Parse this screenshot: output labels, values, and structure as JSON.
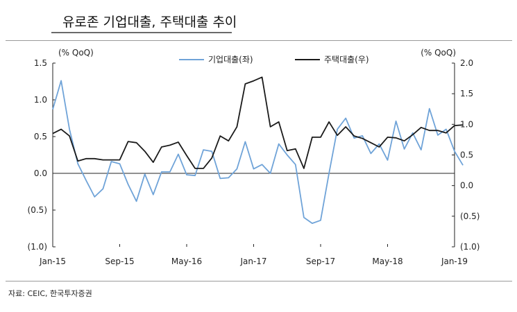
{
  "title": "유로존 기업대출, 주택대출 추이",
  "source": "자료: CEIC, 한국투자증권",
  "chart_data": {
    "type": "line",
    "left_unit": "(% QoQ)",
    "right_unit": "(% QoQ)",
    "left_axis": {
      "ylim": [
        -1.0,
        1.5
      ],
      "ticks": [
        1.5,
        1.0,
        0.5,
        0.0,
        -0.5,
        -1.0
      ],
      "tick_labels": [
        "1.5",
        "1.0",
        "0.5",
        "0.0",
        "(0.5)",
        "(1.0)"
      ]
    },
    "right_axis": {
      "ylim": [
        -1.0,
        2.0
      ],
      "ticks": [
        2.0,
        1.5,
        1.0,
        0.5,
        0.0,
        -0.5,
        -1.0
      ],
      "tick_labels": [
        "2.0",
        "1.5",
        "1.0",
        "0.5",
        "0.0",
        "(0.5)",
        "(1.0)"
      ]
    },
    "x_tick_labels": [
      "Jan-15",
      "Sep-15",
      "May-16",
      "Jan-17",
      "Sep-17",
      "May-18",
      "Jan-19"
    ],
    "x_tick_months": [
      "2015-01",
      "2015-09",
      "2016-05",
      "2017-01",
      "2017-09",
      "2018-05",
      "2019-01"
    ],
    "grid": false,
    "legend_position": "top-center",
    "series": [
      {
        "name": "기업대출(좌)",
        "axis": "left",
        "color": "#6fa3d8",
        "points": [
          [
            "2015-01",
            0.87
          ],
          [
            "2015-02",
            1.26
          ],
          [
            "2015-03",
            0.6
          ],
          [
            "2015-04",
            0.13
          ],
          [
            "2015-05",
            -0.1
          ],
          [
            "2015-06",
            -0.32
          ],
          [
            "2015-07",
            -0.21
          ],
          [
            "2015-08",
            0.16
          ],
          [
            "2015-09",
            0.13
          ],
          [
            "2015-10",
            -0.15
          ],
          [
            "2015-11",
            -0.38
          ],
          [
            "2015-12",
            -0.01
          ],
          [
            "2016-01",
            -0.29
          ],
          [
            "2016-02",
            0.02
          ],
          [
            "2016-03",
            0.02
          ],
          [
            "2016-04",
            0.26
          ],
          [
            "2016-05",
            -0.02
          ],
          [
            "2016-06",
            -0.03
          ],
          [
            "2016-07",
            0.32
          ],
          [
            "2016-08",
            0.3
          ],
          [
            "2016-09",
            -0.07
          ],
          [
            "2016-10",
            -0.06
          ],
          [
            "2016-11",
            0.06
          ],
          [
            "2016-12",
            0.43
          ],
          [
            "2017-01",
            0.06
          ],
          [
            "2017-02",
            0.12
          ],
          [
            "2017-03",
            0.0
          ],
          [
            "2017-04",
            0.4
          ],
          [
            "2017-05",
            0.25
          ],
          [
            "2017-06",
            0.12
          ],
          [
            "2017-07",
            -0.6
          ],
          [
            "2017-08",
            -0.68
          ],
          [
            "2017-09",
            -0.64
          ],
          [
            "2017-10",
            0.0
          ],
          [
            "2017-11",
            0.6
          ],
          [
            "2017-12",
            0.75
          ],
          [
            "2018-01",
            0.48
          ],
          [
            "2018-02",
            0.51
          ],
          [
            "2018-03",
            0.27
          ],
          [
            "2018-04",
            0.4
          ],
          [
            "2018-05",
            0.18
          ],
          [
            "2018-06",
            0.71
          ],
          [
            "2018-07",
            0.33
          ],
          [
            "2018-08",
            0.55
          ],
          [
            "2018-09",
            0.32
          ],
          [
            "2018-10",
            0.88
          ],
          [
            "2018-11",
            0.52
          ],
          [
            "2018-12",
            0.6
          ],
          [
            "2019-01",
            0.3
          ],
          [
            "2019-02",
            0.11
          ]
        ]
      },
      {
        "name": "주택대출(우)",
        "axis": "right",
        "color": "#1a1a1a",
        "points": [
          [
            "2015-01",
            0.85
          ],
          [
            "2015-02",
            0.92
          ],
          [
            "2015-03",
            0.81
          ],
          [
            "2015-04",
            0.4
          ],
          [
            "2015-05",
            0.44
          ],
          [
            "2015-06",
            0.44
          ],
          [
            "2015-07",
            0.42
          ],
          [
            "2015-08",
            0.42
          ],
          [
            "2015-09",
            0.42
          ],
          [
            "2015-10",
            0.72
          ],
          [
            "2015-11",
            0.7
          ],
          [
            "2015-12",
            0.56
          ],
          [
            "2016-01",
            0.38
          ],
          [
            "2016-02",
            0.63
          ],
          [
            "2016-03",
            0.66
          ],
          [
            "2016-04",
            0.71
          ],
          [
            "2016-05",
            0.49
          ],
          [
            "2016-06",
            0.28
          ],
          [
            "2016-07",
            0.28
          ],
          [
            "2016-08",
            0.45
          ],
          [
            "2016-09",
            0.81
          ],
          [
            "2016-10",
            0.73
          ],
          [
            "2016-11",
            0.96
          ],
          [
            "2016-12",
            1.66
          ],
          [
            "2017-01",
            1.71
          ],
          [
            "2017-02",
            1.77
          ],
          [
            "2017-03",
            0.96
          ],
          [
            "2017-04",
            1.04
          ],
          [
            "2017-05",
            0.57
          ],
          [
            "2017-06",
            0.6
          ],
          [
            "2017-07",
            0.28
          ],
          [
            "2017-08",
            0.79
          ],
          [
            "2017-09",
            0.79
          ],
          [
            "2017-10",
            1.04
          ],
          [
            "2017-11",
            0.82
          ],
          [
            "2017-12",
            0.96
          ],
          [
            "2018-01",
            0.81
          ],
          [
            "2018-02",
            0.77
          ],
          [
            "2018-03",
            0.7
          ],
          [
            "2018-04",
            0.63
          ],
          [
            "2018-05",
            0.79
          ],
          [
            "2018-06",
            0.78
          ],
          [
            "2018-07",
            0.73
          ],
          [
            "2018-08",
            0.83
          ],
          [
            "2018-09",
            0.95
          ],
          [
            "2018-10",
            0.9
          ],
          [
            "2018-11",
            0.9
          ],
          [
            "2018-12",
            0.86
          ],
          [
            "2019-01",
            0.98
          ],
          [
            "2019-02",
            0.99
          ]
        ]
      }
    ]
  }
}
